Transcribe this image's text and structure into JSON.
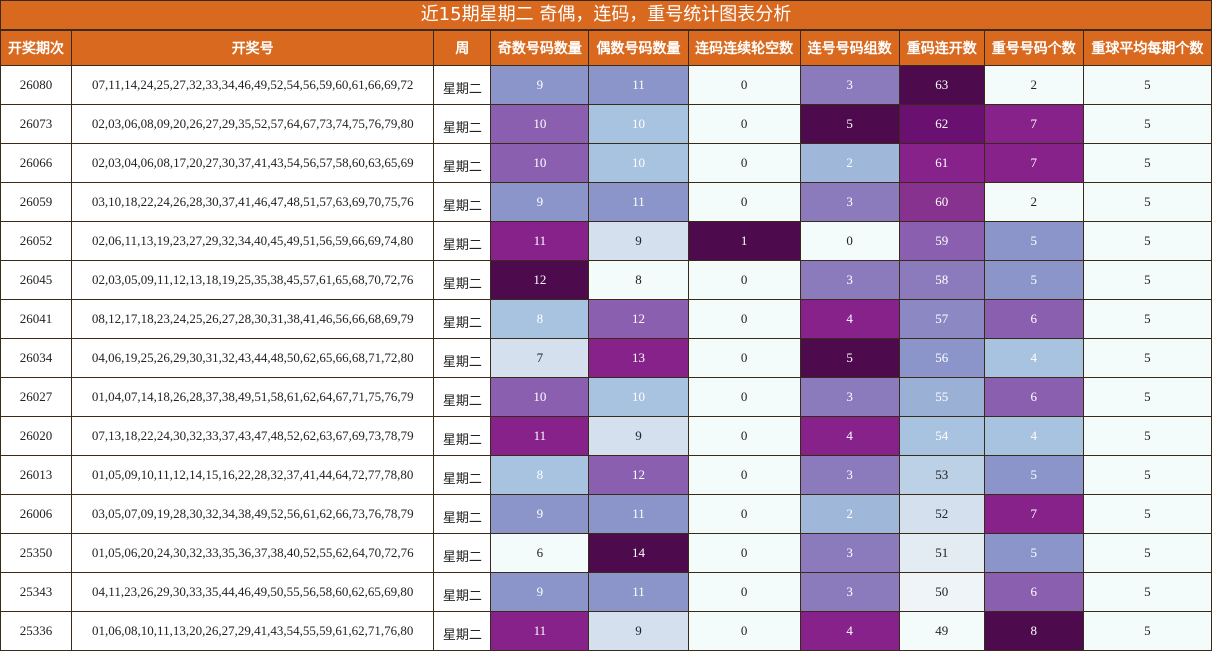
{
  "title": "近15期星期二 奇偶，连码，重号统计图表分析",
  "headers": [
    "开奖期次",
    "开奖号",
    "周",
    "奇数号码数量",
    "偶数号码数量",
    "连码连续轮空数",
    "连号号码组数",
    "重码连开数",
    "重号号码个数",
    "重球平均每期个数"
  ],
  "rows": [
    {
      "period": "26080",
      "numbers": "07,11,14,24,25,27,32,33,34,46,49,52,54,56,59,60,61,66,69,72",
      "weekday": "星期二",
      "odd": "9",
      "even": "11",
      "gap": "0",
      "consec": "3",
      "repeat_run": "63",
      "repeat_count": "2",
      "avg": "5"
    },
    {
      "period": "26073",
      "numbers": "02,03,06,08,09,20,26,27,29,35,52,57,64,67,73,74,75,76,79,80",
      "weekday": "星期二",
      "odd": "10",
      "even": "10",
      "gap": "0",
      "consec": "5",
      "repeat_run": "62",
      "repeat_count": "7",
      "avg": "5"
    },
    {
      "period": "26066",
      "numbers": "02,03,04,06,08,17,20,27,30,37,41,43,54,56,57,58,60,63,65,69",
      "weekday": "星期二",
      "odd": "10",
      "even": "10",
      "gap": "0",
      "consec": "2",
      "repeat_run": "61",
      "repeat_count": "7",
      "avg": "5"
    },
    {
      "period": "26059",
      "numbers": "03,10,18,22,24,26,28,30,37,41,46,47,48,51,57,63,69,70,75,76",
      "weekday": "星期二",
      "odd": "9",
      "even": "11",
      "gap": "0",
      "consec": "3",
      "repeat_run": "60",
      "repeat_count": "2",
      "avg": "5"
    },
    {
      "period": "26052",
      "numbers": "02,06,11,13,19,23,27,29,32,34,40,45,49,51,56,59,66,69,74,80",
      "weekday": "星期二",
      "odd": "11",
      "even": "9",
      "gap": "1",
      "consec": "0",
      "repeat_run": "59",
      "repeat_count": "5",
      "avg": "5"
    },
    {
      "period": "26045",
      "numbers": "02,03,05,09,11,12,13,18,19,25,35,38,45,57,61,65,68,70,72,76",
      "weekday": "星期二",
      "odd": "12",
      "even": "8",
      "gap": "0",
      "consec": "3",
      "repeat_run": "58",
      "repeat_count": "5",
      "avg": "5"
    },
    {
      "period": "26041",
      "numbers": "08,12,17,18,23,24,25,26,27,28,30,31,38,41,46,56,66,68,69,79",
      "weekday": "星期二",
      "odd": "8",
      "even": "12",
      "gap": "0",
      "consec": "4",
      "repeat_run": "57",
      "repeat_count": "6",
      "avg": "5"
    },
    {
      "period": "26034",
      "numbers": "04,06,19,25,26,29,30,31,32,43,44,48,50,62,65,66,68,71,72,80",
      "weekday": "星期二",
      "odd": "7",
      "even": "13",
      "gap": "0",
      "consec": "5",
      "repeat_run": "56",
      "repeat_count": "4",
      "avg": "5"
    },
    {
      "period": "26027",
      "numbers": "01,04,07,14,18,26,28,37,38,49,51,58,61,62,64,67,71,75,76,79",
      "weekday": "星期二",
      "odd": "10",
      "even": "10",
      "gap": "0",
      "consec": "3",
      "repeat_run": "55",
      "repeat_count": "6",
      "avg": "5"
    },
    {
      "period": "26020",
      "numbers": "07,13,18,22,24,30,32,33,37,43,47,48,52,62,63,67,69,73,78,79",
      "weekday": "星期二",
      "odd": "11",
      "even": "9",
      "gap": "0",
      "consec": "4",
      "repeat_run": "54",
      "repeat_count": "4",
      "avg": "5"
    },
    {
      "period": "26013",
      "numbers": "01,05,09,10,11,12,14,15,16,22,28,32,37,41,44,64,72,77,78,80",
      "weekday": "星期二",
      "odd": "8",
      "even": "12",
      "gap": "0",
      "consec": "3",
      "repeat_run": "53",
      "repeat_count": "5",
      "avg": "5"
    },
    {
      "period": "26006",
      "numbers": "03,05,07,09,19,28,30,32,34,38,49,52,56,61,62,66,73,76,78,79",
      "weekday": "星期二",
      "odd": "9",
      "even": "11",
      "gap": "0",
      "consec": "2",
      "repeat_run": "52",
      "repeat_count": "7",
      "avg": "5"
    },
    {
      "period": "25350",
      "numbers": "01,05,06,20,24,30,32,33,35,36,37,38,40,52,55,62,64,70,72,76",
      "weekday": "星期二",
      "odd": "6",
      "even": "14",
      "gap": "0",
      "consec": "3",
      "repeat_run": "51",
      "repeat_count": "5",
      "avg": "5"
    },
    {
      "period": "25343",
      "numbers": "04,11,23,26,29,30,33,35,44,46,49,50,55,56,58,60,62,65,69,80",
      "weekday": "星期二",
      "odd": "9",
      "even": "11",
      "gap": "0",
      "consec": "3",
      "repeat_run": "50",
      "repeat_count": "6",
      "avg": "5"
    },
    {
      "period": "25336",
      "numbers": "01,06,08,10,11,13,20,26,27,29,41,43,54,55,59,61,62,71,76,80",
      "weekday": "星期二",
      "odd": "11",
      "even": "9",
      "gap": "0",
      "consec": "4",
      "repeat_run": "49",
      "repeat_count": "8",
      "avg": "5"
    }
  ],
  "cell_colors": {
    "odd": [
      "#8b95c9",
      "#8a5fb0",
      "#8a5fb0",
      "#8b95c9",
      "#86228a",
      "#4d0a4d",
      "#a7c3df",
      "#d4e0ee",
      "#8a5fb0",
      "#86228a",
      "#a7c3df",
      "#8b95c9",
      "#f4fbfb",
      "#8b95c9",
      "#86228a"
    ],
    "even": [
      "#8b95c9",
      "#a7c3df",
      "#a7c3df",
      "#8b95c9",
      "#d4e0ee",
      "#f4fbfb",
      "#8a5fb0",
      "#86228a",
      "#a7c3df",
      "#d4e0ee",
      "#8a5fb0",
      "#8b95c9",
      "#4d0a4d",
      "#8b95c9",
      "#d4e0ee"
    ],
    "gap": [
      "#f4fbfb",
      "#f4fbfb",
      "#f4fbfb",
      "#f4fbfb",
      "#4d0a4d",
      "#f4fbfb",
      "#f4fbfb",
      "#f4fbfb",
      "#f4fbfb",
      "#f4fbfb",
      "#f4fbfb",
      "#f4fbfb",
      "#f4fbfb",
      "#f4fbfb",
      "#f4fbfb"
    ],
    "consec": [
      "#8b7bbd",
      "#4d0a4d",
      "#9fb8d9",
      "#8b7bbd",
      "#f4fbfb",
      "#8b7bbd",
      "#86228a",
      "#4d0a4d",
      "#8b7bbd",
      "#86228a",
      "#8b7bbd",
      "#9fb8d9",
      "#8b7bbd",
      "#8b7bbd",
      "#86228a"
    ],
    "repeat_run": [
      "#4d0a4d",
      "#6a1070",
      "#86228a",
      "#86328e",
      "#8a5fb0",
      "#8b7bbd",
      "#8b88c4",
      "#8b95c9",
      "#9ab0d5",
      "#a7c3df",
      "#bcd1e6",
      "#d4e0ee",
      "#e4ecf3",
      "#eef4f8",
      "#f4fbfb"
    ],
    "repeat_count": [
      "#f4fbfb",
      "#86228a",
      "#86228a",
      "#f4fbfb",
      "#8b95c9",
      "#8b95c9",
      "#8a5fb0",
      "#a7c3df",
      "#8a5fb0",
      "#a7c3df",
      "#8b95c9",
      "#86228a",
      "#8b95c9",
      "#8a5fb0",
      "#4d0a4d"
    ],
    "avg": [
      "#f4fbfb",
      "#f4fbfb",
      "#f4fbfb",
      "#f4fbfb",
      "#f4fbfb",
      "#f4fbfb",
      "#f4fbfb",
      "#f4fbfb",
      "#f4fbfb",
      "#f4fbfb",
      "#f4fbfb",
      "#f4fbfb",
      "#f4fbfb",
      "#f4fbfb",
      "#f4fbfb"
    ]
  }
}
